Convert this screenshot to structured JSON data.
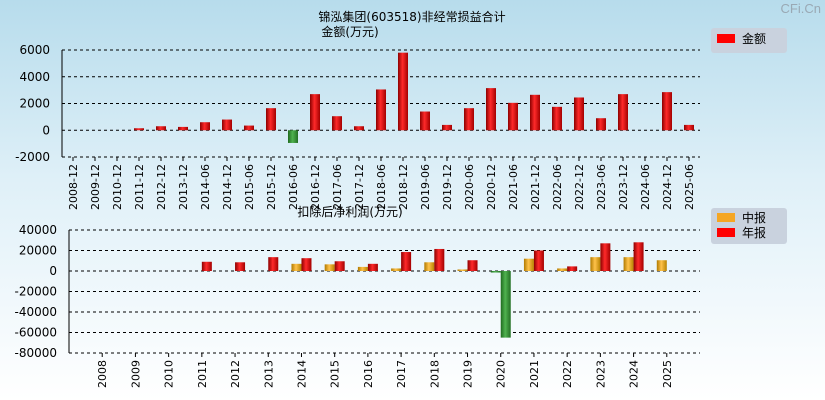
{
  "watermark": "CFi.Cn",
  "chart_data": [
    {
      "type": "bar",
      "title": "锦泓集团(603518)非经常损益合计",
      "ylabel": "金额(万元)",
      "ylim": [
        -2000,
        6000
      ],
      "yticks": [
        -2000,
        0,
        2000,
        4000,
        6000
      ],
      "grid": true,
      "legend_position": "top-right",
      "categories": [
        "2008-12",
        "2009-12",
        "2010-12",
        "2011-12",
        "2012-12",
        "2013-12",
        "2014-06",
        "2014-12",
        "2015-06",
        "2015-12",
        "2016-06",
        "2016-12",
        "2017-06",
        "2017-12",
        "2018-06",
        "2018-12",
        "2019-06",
        "2019-12",
        "2020-06",
        "2020-12",
        "2021-06",
        "2021-12",
        "2022-06",
        "2022-12",
        "2023-06",
        "2023-12",
        "2024-06",
        "2024-12",
        "2025-06"
      ],
      "series": [
        {
          "name": "金额",
          "color": "#ff0000",
          "values": [
            0,
            0,
            0,
            150,
            300,
            250,
            600,
            800,
            350,
            1650,
            -950,
            2700,
            1050,
            300,
            3050,
            5800,
            1400,
            400,
            1650,
            3150,
            2050,
            2650,
            1750,
            2450,
            900,
            2700,
            0,
            2850,
            400
          ]
        }
      ]
    },
    {
      "type": "bar",
      "title": "扣除后净利润(万元)",
      "ylim": [
        -80000,
        40000
      ],
      "yticks": [
        -80000,
        -60000,
        -40000,
        -20000,
        0,
        20000,
        40000
      ],
      "grid": true,
      "legend_position": "top-right",
      "categories": [
        "2008",
        "2009",
        "2010",
        "2011",
        "2012",
        "2013",
        "2014",
        "2015",
        "2016",
        "2017",
        "2018",
        "2019",
        "2020",
        "2021",
        "2022",
        "2023",
        "2024",
        "2025"
      ],
      "series": [
        {
          "name": "中报",
          "color": "#f5a623",
          "values": [
            null,
            null,
            null,
            null,
            null,
            null,
            7000,
            6500,
            4000,
            2500,
            8500,
            1500,
            -1500,
            12000,
            2500,
            13500,
            13500,
            10500
          ]
        },
        {
          "name": "年报",
          "color": "#ff0000",
          "values": [
            null,
            null,
            null,
            9000,
            8500,
            13500,
            12500,
            9500,
            7000,
            18500,
            21500,
            10500,
            -65000,
            20000,
            4500,
            27000,
            28000,
            null
          ]
        }
      ]
    }
  ]
}
